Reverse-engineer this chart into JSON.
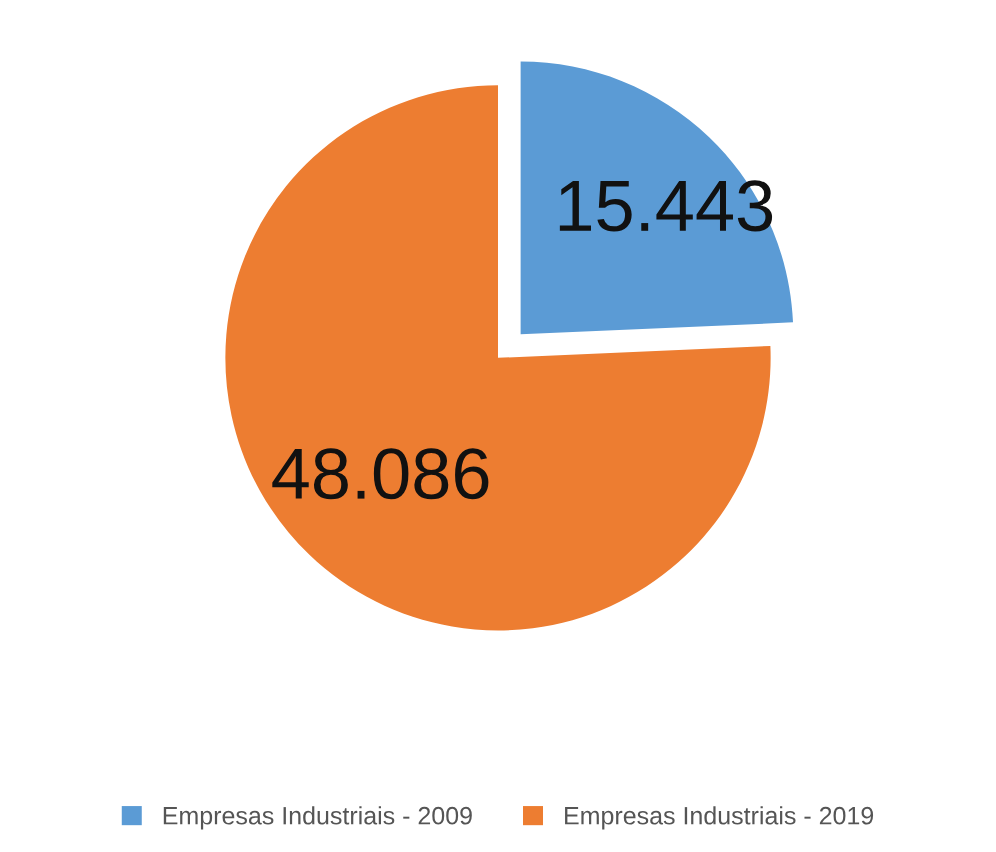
{
  "chart_data": {
    "type": "pie",
    "categories": [
      "Empresas Industriais - 2009",
      "Empresas Industriais - 2019"
    ],
    "values": [
      15443,
      48086
    ],
    "colors": [
      "#5b9bd5",
      "#ed7d31"
    ],
    "value_labels": [
      "15.443",
      "48.086"
    ],
    "legend": "bottom"
  }
}
